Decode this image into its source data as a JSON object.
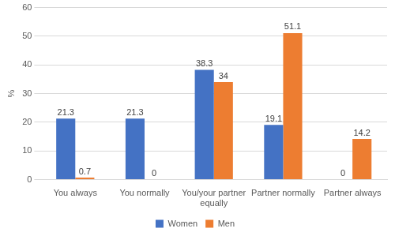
{
  "chart_data": {
    "type": "bar",
    "y_label": "%",
    "categories": [
      "You always",
      "You normally",
      "You/your partner equally",
      "Partner normally",
      "Partner always"
    ],
    "series": [
      {
        "name": "Women",
        "color": "#4472c4",
        "values": [
          21.3,
          21.3,
          38.3,
          19.1,
          0
        ]
      },
      {
        "name": "Men",
        "color": "#ed7d31",
        "values": [
          0.7,
          0,
          34,
          51.1,
          14.2
        ]
      }
    ],
    "ylim": [
      0,
      60
    ],
    "yticks": [
      0,
      10,
      20,
      30,
      40,
      50,
      60
    ],
    "grid": true,
    "legend": "bottom",
    "data_labels": true
  }
}
